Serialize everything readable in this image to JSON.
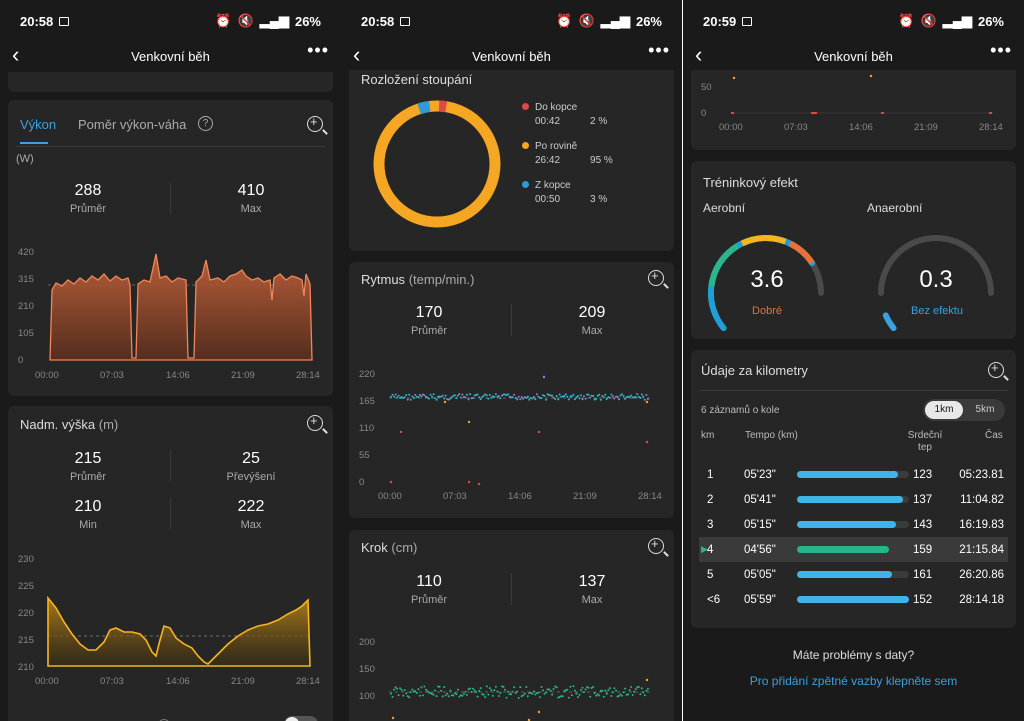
{
  "status": [
    {
      "time": "20:58",
      "battery": "26%"
    },
    {
      "time": "20:58",
      "battery": "26%"
    },
    {
      "time": "20:59",
      "battery": "26%"
    }
  ],
  "header_title": "Venkovní běh",
  "power": {
    "tab_active": "Výkon",
    "tab_other": "Poměr výkon-váha",
    "unit": "(W)",
    "avg": "288",
    "avg_label": "Průměr",
    "max": "410",
    "max_label": "Max",
    "y_ticks": [
      "420",
      "315",
      "210",
      "105",
      "0"
    ],
    "x_ticks": [
      "00:00",
      "07:03",
      "14:06",
      "21:09",
      "28:14"
    ]
  },
  "elevation": {
    "title": "Nadm. výška",
    "unit": "(m)",
    "avg": "215",
    "avg_label": "Průměr",
    "gain": "25",
    "gain_label": "Převýšení",
    "min": "210",
    "min_label": "Min",
    "max": "222",
    "max_label": "Max",
    "y_ticks": [
      "230",
      "225",
      "220",
      "215",
      "210"
    ],
    "x_ticks": [
      "00:00",
      "07:03",
      "14:06",
      "21:09",
      "28:14"
    ]
  },
  "slope": {
    "title": "Rozložení stoupání",
    "items": [
      {
        "name": "Do kopce",
        "time": "00:42",
        "pct": "2 %",
        "color": "#e04848"
      },
      {
        "name": "Po rovině",
        "time": "26:42",
        "pct": "95 %",
        "color": "#f5a623"
      },
      {
        "name": "Z kopce",
        "time": "00:50",
        "pct": "3 %",
        "color": "#2e9bd6"
      }
    ]
  },
  "cadence": {
    "title": "Rytmus",
    "unit": "(temp/min.)",
    "avg": "170",
    "avg_label": "Průměr",
    "max": "209",
    "max_label": "Max",
    "y_ticks": [
      "220",
      "165",
      "110",
      "55",
      "0"
    ],
    "x_ticks": [
      "00:00",
      "07:03",
      "14:06",
      "21:09",
      "28:14"
    ]
  },
  "stride": {
    "title": "Krok",
    "unit": "(cm)",
    "avg": "110",
    "avg_label": "Průměr",
    "max": "137",
    "max_label": "Max",
    "y_ticks": [
      "200",
      "150",
      "100"
    ]
  },
  "top_chart": {
    "y_ticks": [
      "50",
      "0"
    ],
    "x_ticks": [
      "00:00",
      "07:03",
      "14:06",
      "21:09",
      "28:14"
    ]
  },
  "training": {
    "title": "Tréninkový efekt",
    "aerobic_label": "Aerobní",
    "aerobic_value": "3.6",
    "aerobic_status": "Dobré",
    "anaerobic_label": "Anaerobní",
    "anaerobic_value": "0.3",
    "anaerobic_status": "Bez efektu",
    "aerobic_fraction": 0.72,
    "anaerobic_fraction": 0.06
  },
  "km": {
    "title": "Údaje za kilometry",
    "laps_label": "6 záznamů o kole",
    "seg_1": "1km",
    "seg_2": "5km",
    "col_km": "km",
    "col_pace": "Tempo (km)",
    "col_hr1": "Srdeční",
    "col_hr2": "tep",
    "col_time": "Čas",
    "rows": [
      {
        "km": "1",
        "pace": "05'23\"",
        "hr": "123",
        "time": "05:23.81",
        "fill": 0.9
      },
      {
        "km": "2",
        "pace": "05'41\"",
        "hr": "137",
        "time": "11:04.82",
        "fill": 0.95
      },
      {
        "km": "3",
        "pace": "05'15\"",
        "hr": "143",
        "time": "16:19.83",
        "fill": 0.88
      },
      {
        "km": "4",
        "pace": "04'56\"",
        "hr": "159",
        "time": "21:15.84",
        "fill": 0.82
      },
      {
        "km": "5",
        "pace": "05'05\"",
        "hr": "161",
        "time": "26:20.86",
        "fill": 0.85
      },
      {
        "km": "<6",
        "pace": "05'59\"",
        "hr": "152",
        "time": "28:14.18",
        "fill": 1.0
      }
    ]
  },
  "feedback": {
    "question": "Máte problémy s daty?",
    "link": "Pro přidání zpětné vazby klepněte sem"
  }
}
